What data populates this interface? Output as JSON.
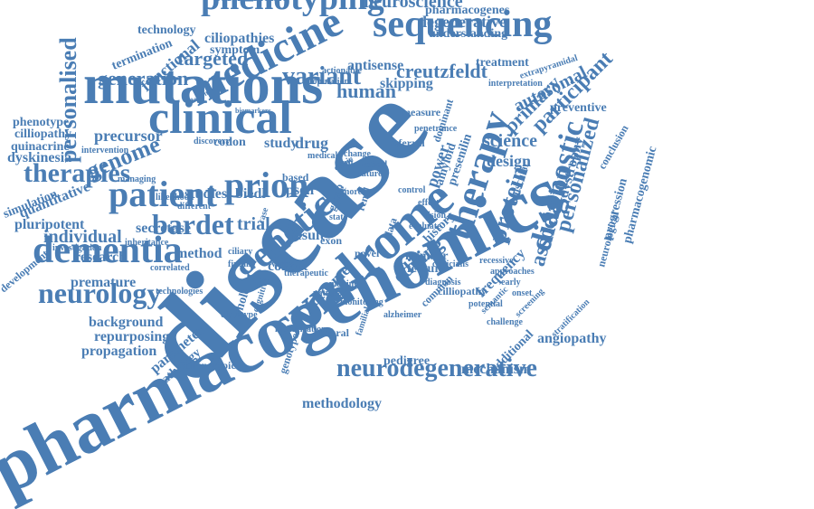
{
  "word_cloud": {
    "color": "#4a7db4",
    "words": [
      "pharmacogenomics",
      "disease",
      "mutations",
      "clinical",
      "syndrome",
      "genetic",
      "neurodegenerative",
      "phenotyping",
      "medicine",
      "sequencing",
      "therapy",
      "patient",
      "prion",
      "dementia",
      "neurology",
      "diagnostic",
      "therapies",
      "bardet",
      "protein",
      "association",
      "personalized",
      "personalised",
      "genome",
      "generation",
      "targeted",
      "variant",
      "human",
      "creutzfeldt",
      "biomedicine",
      "neuroscience",
      "pharmacogenes",
      "degenerative",
      "understanding",
      "technology",
      "ciliopathies",
      "functional",
      "termination",
      "symptom",
      "antisense",
      "treatment",
      "extrapyramidal",
      "skipping",
      "population",
      "actionable",
      "autosomal",
      "interpretation",
      "primary",
      "participant",
      "preventive",
      "phenotype",
      "cilliopathy",
      "quinacrine",
      "dyskinesia",
      "precursor",
      "intervention",
      "codon",
      "study",
      "drug",
      "science",
      "design",
      "dystrophy",
      "conclusion",
      "simulation",
      "quantitative",
      "pluripotent",
      "individual",
      "research",
      "development",
      "premature",
      "secretase",
      "trial",
      "studies",
      "biedl",
      "psen",
      "editing",
      "result",
      "method",
      "whole",
      "cohort",
      "outcome",
      "history",
      "number",
      "feature",
      "frequency",
      "angiopathy",
      "background",
      "repurposing",
      "propagation",
      "parameter",
      "pathology",
      "phenotypic",
      "genotype",
      "pedigree",
      "mechanism",
      "methodology",
      "additional",
      "progression",
      "neurological",
      "pharmacogenomic",
      "presenilin",
      "amyloid",
      "dominant",
      "power",
      "referral",
      "measure",
      "penetrance",
      "renal",
      "retinal",
      "muscular",
      "exon",
      "rare",
      "novel",
      "national",
      "alzheimer",
      "cilliopathy",
      "common",
      "natural",
      "technologies",
      "cognitive",
      "familial",
      "determined",
      "biomarkers",
      "discovery",
      "likelihood",
      "managing",
      "different",
      "investigation",
      "inheritance",
      "finding",
      "ciliary",
      "stratification",
      "semantic",
      "challenge",
      "medical",
      "change",
      "future",
      "control",
      "based",
      "more",
      "clinic",
      "making",
      "state",
      "group",
      "data",
      "case",
      "cell",
      "vision",
      "evaluate",
      "effect",
      "diptotype",
      "diagnosis",
      "verbal",
      "correlated",
      "screening",
      "monitoring",
      "identification",
      "therapeutic",
      "clinicians",
      "potential",
      "recessive",
      "approaches",
      "early",
      "onset",
      "mild"
    ]
  }
}
